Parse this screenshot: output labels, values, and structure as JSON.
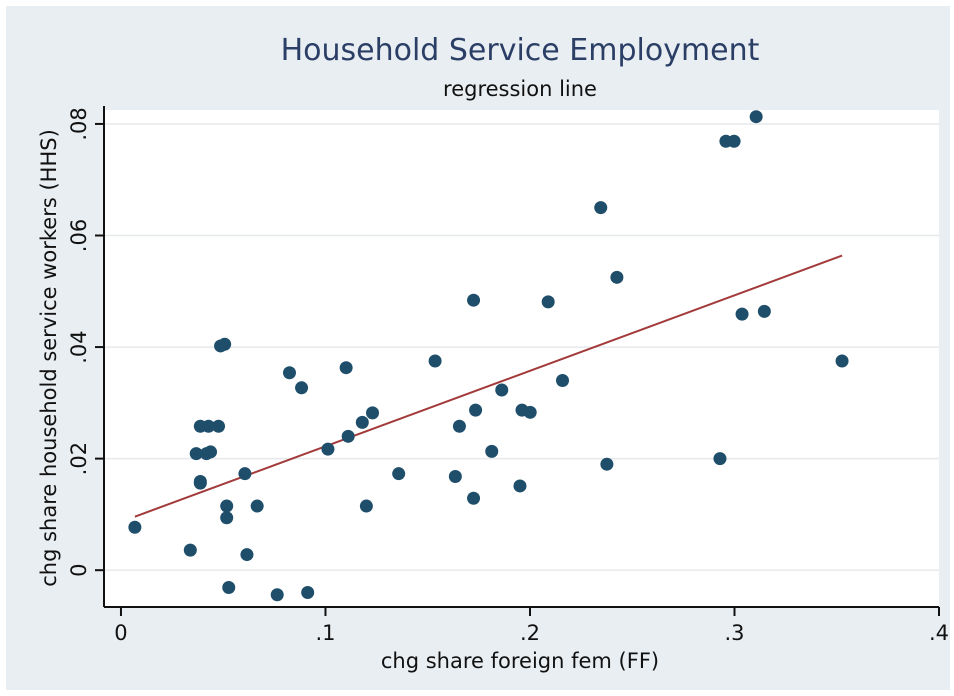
{
  "chart_data": {
    "type": "scatter",
    "title": "Household Service Employment",
    "subtitle": "regression line",
    "xlabel": "chg share foreign fem (FF)",
    "ylabel": "chg share household service workers (HHS)",
    "xlim": [
      -0.0083,
      0.4
    ],
    "ylim": [
      -0.0066,
      0.0825
    ],
    "x_ticks": [
      0,
      0.1,
      0.2,
      0.3,
      0.4
    ],
    "x_tick_labels": [
      "0",
      ".1",
      ".2",
      ".3",
      ".4"
    ],
    "y_ticks": [
      0,
      0.02,
      0.04,
      0.06,
      0.08
    ],
    "y_tick_labels": [
      "0",
      ".02",
      ".04",
      ".06",
      ".08"
    ],
    "grid": true,
    "colors": {
      "points": "#1f4e6b",
      "regression": "#a33a3a",
      "background": "#e9eef2",
      "plot": "#ffffff",
      "title": "#2b3f66"
    },
    "regression_line": {
      "x": [
        0.0068,
        0.3526
      ],
      "y": [
        0.0096,
        0.0564
      ]
    },
    "points": [
      {
        "x": 0.0068,
        "y": 0.0077
      },
      {
        "x": 0.0339,
        "y": 0.0036
      },
      {
        "x": 0.0368,
        "y": 0.0209
      },
      {
        "x": 0.0388,
        "y": 0.0159
      },
      {
        "x": 0.0388,
        "y": 0.0156
      },
      {
        "x": 0.0388,
        "y": 0.0258
      },
      {
        "x": 0.0418,
        "y": 0.0209
      },
      {
        "x": 0.0428,
        "y": 0.0258
      },
      {
        "x": 0.0438,
        "y": 0.0212
      },
      {
        "x": 0.0477,
        "y": 0.0258
      },
      {
        "x": 0.0487,
        "y": 0.0402
      },
      {
        "x": 0.0507,
        "y": 0.0405
      },
      {
        "x": 0.0517,
        "y": 0.0115
      },
      {
        "x": 0.0517,
        "y": 0.0094
      },
      {
        "x": 0.0527,
        "y": -0.0031
      },
      {
        "x": 0.0606,
        "y": 0.0173
      },
      {
        "x": 0.0616,
        "y": 0.0028
      },
      {
        "x": 0.0666,
        "y": 0.0115
      },
      {
        "x": 0.0764,
        "y": -0.0044
      },
      {
        "x": 0.0824,
        "y": 0.0354
      },
      {
        "x": 0.0883,
        "y": 0.0327
      },
      {
        "x": 0.0913,
        "y": -0.004
      },
      {
        "x": 0.1012,
        "y": 0.0217
      },
      {
        "x": 0.1101,
        "y": 0.0363
      },
      {
        "x": 0.1111,
        "y": 0.024
      },
      {
        "x": 0.118,
        "y": 0.0265
      },
      {
        "x": 0.12,
        "y": 0.0115
      },
      {
        "x": 0.123,
        "y": 0.0282
      },
      {
        "x": 0.1358,
        "y": 0.0173
      },
      {
        "x": 0.1536,
        "y": 0.0375
      },
      {
        "x": 0.1635,
        "y": 0.0168
      },
      {
        "x": 0.1655,
        "y": 0.0258
      },
      {
        "x": 0.1724,
        "y": 0.0484
      },
      {
        "x": 0.1724,
        "y": 0.0129
      },
      {
        "x": 0.1734,
        "y": 0.0287
      },
      {
        "x": 0.1813,
        "y": 0.0213
      },
      {
        "x": 0.1862,
        "y": 0.0323
      },
      {
        "x": 0.1951,
        "y": 0.0151
      },
      {
        "x": 0.1961,
        "y": 0.0287
      },
      {
        "x": 0.2001,
        "y": 0.0283
      },
      {
        "x": 0.2089,
        "y": 0.0481
      },
      {
        "x": 0.2159,
        "y": 0.034
      },
      {
        "x": 0.2346,
        "y": 0.065
      },
      {
        "x": 0.2376,
        "y": 0.019
      },
      {
        "x": 0.2425,
        "y": 0.0525
      },
      {
        "x": 0.2929,
        "y": 0.02
      },
      {
        "x": 0.2958,
        "y": 0.0769
      },
      {
        "x": 0.2998,
        "y": 0.0769
      },
      {
        "x": 0.3037,
        "y": 0.0459
      },
      {
        "x": 0.3106,
        "y": 0.0813
      },
      {
        "x": 0.3146,
        "y": 0.0464
      },
      {
        "x": 0.3526,
        "y": 0.0375
      }
    ]
  }
}
